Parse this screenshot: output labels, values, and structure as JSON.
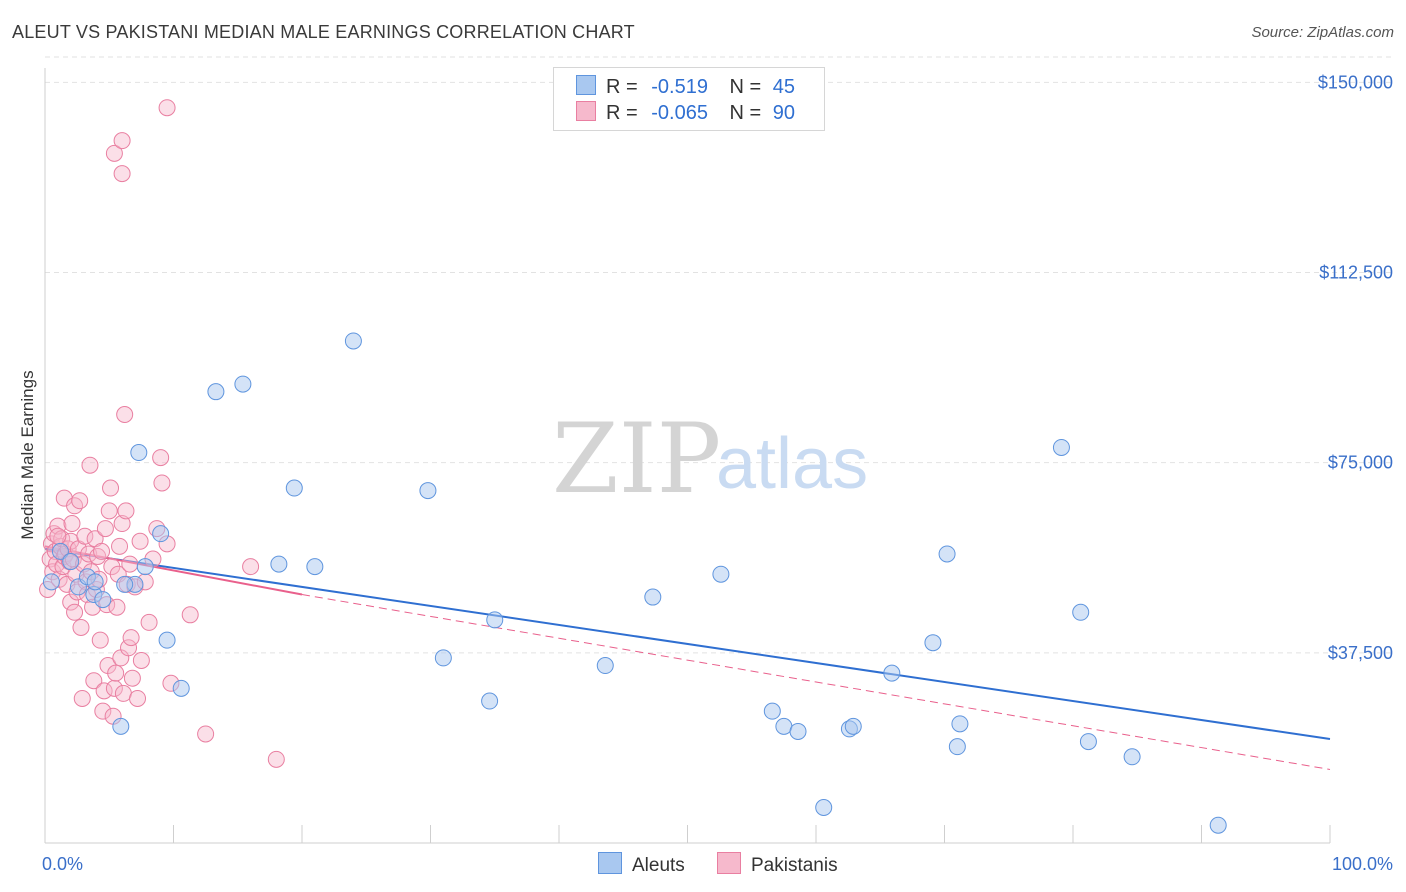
{
  "header": {
    "title": "ALEUT VS PAKISTANI MEDIAN MALE EARNINGS CORRELATION CHART",
    "source": "Source: ZipAtlas.com"
  },
  "watermark": {
    "zip": "ZIP",
    "atlas": "atlas"
  },
  "legend": {
    "rows": [
      {
        "r_label": "R =",
        "r_value": "-0.519",
        "n_label": "N =",
        "n_value": "45"
      },
      {
        "r_label": "R =",
        "r_value": "-0.065",
        "n_label": "N =",
        "n_value": "90"
      }
    ],
    "bottom": [
      {
        "label": "Aleuts"
      },
      {
        "label": "Pakistanis"
      }
    ]
  },
  "colors": {
    "aleuts_fill": "#a9c8f0",
    "aleuts_stroke": "#5f95de",
    "aleuts_line": "#2f6fd1",
    "pakistanis_fill": "#f6b9cc",
    "pakistanis_stroke": "#e97fa1",
    "pakistanis_line": "#e9608c",
    "grid": "#e2e2e2",
    "axis_text": "#3a6fc9"
  },
  "chart_data": {
    "type": "scatter",
    "title": "ALEUT VS PAKISTANI MEDIAN MALE EARNINGS CORRELATION CHART",
    "xlabel": "",
    "ylabel": "Median Male Earnings",
    "xlim": [
      0,
      100
    ],
    "ylim": [
      0,
      155000
    ],
    "x_tick_labels": [
      "0.0%",
      "100.0%"
    ],
    "y_ticks": [
      37500,
      75000,
      112500,
      150000
    ],
    "y_tick_labels": [
      "$37,500",
      "$75,000",
      "$112,500",
      "$150,000"
    ],
    "grid": true,
    "legend_position": "top-center",
    "series": [
      {
        "name": "Aleuts",
        "R": -0.519,
        "N": 45,
        "trend": {
          "x": [
            0,
            100
          ],
          "y": [
            58000,
            20500
          ],
          "style": "solid"
        },
        "points": [
          {
            "x": 0.5,
            "y": 51500
          },
          {
            "x": 1.2,
            "y": 57500
          },
          {
            "x": 2.0,
            "y": 55500
          },
          {
            "x": 2.6,
            "y": 50500
          },
          {
            "x": 3.3,
            "y": 52500
          },
          {
            "x": 3.8,
            "y": 49000
          },
          {
            "x": 3.9,
            "y": 51500
          },
          {
            "x": 4.5,
            "y": 48000
          },
          {
            "x": 7.0,
            "y": 51000
          },
          {
            "x": 5.9,
            "y": 23000
          },
          {
            "x": 6.2,
            "y": 51000
          },
          {
            "x": 7.3,
            "y": 77000
          },
          {
            "x": 7.8,
            "y": 54500
          },
          {
            "x": 9.0,
            "y": 61000
          },
          {
            "x": 9.5,
            "y": 40000
          },
          {
            "x": 10.6,
            "y": 30500
          },
          {
            "x": 13.3,
            "y": 89000
          },
          {
            "x": 15.4,
            "y": 90500
          },
          {
            "x": 18.2,
            "y": 55000
          },
          {
            "x": 19.4,
            "y": 70000
          },
          {
            "x": 21.0,
            "y": 54500
          },
          {
            "x": 24.0,
            "y": 99000
          },
          {
            "x": 29.8,
            "y": 69500
          },
          {
            "x": 31.0,
            "y": 36500
          },
          {
            "x": 34.6,
            "y": 28000
          },
          {
            "x": 35.0,
            "y": 44000
          },
          {
            "x": 43.6,
            "y": 35000
          },
          {
            "x": 47.3,
            "y": 48500
          },
          {
            "x": 52.6,
            "y": 53000
          },
          {
            "x": 56.6,
            "y": 26000
          },
          {
            "x": 57.5,
            "y": 23000
          },
          {
            "x": 58.6,
            "y": 22000
          },
          {
            "x": 60.6,
            "y": 7000
          },
          {
            "x": 62.6,
            "y": 22500
          },
          {
            "x": 62.9,
            "y": 23000
          },
          {
            "x": 65.9,
            "y": 33500
          },
          {
            "x": 70.2,
            "y": 57000
          },
          {
            "x": 69.1,
            "y": 39500
          },
          {
            "x": 71.0,
            "y": 19000
          },
          {
            "x": 71.2,
            "y": 23500
          },
          {
            "x": 79.1,
            "y": 78000
          },
          {
            "x": 80.6,
            "y": 45500
          },
          {
            "x": 81.2,
            "y": 20000
          },
          {
            "x": 84.6,
            "y": 17000
          },
          {
            "x": 91.3,
            "y": 3500
          }
        ]
      },
      {
        "name": "Pakistanis",
        "R": -0.065,
        "N": 90,
        "trend": {
          "x": [
            0,
            20
          ],
          "y": [
            58500,
            49000
          ],
          "style": "solid",
          "dashed_extension": {
            "x": [
              20,
              100
            ],
            "y": [
              49000,
              14500
            ]
          }
        },
        "points": [
          {
            "x": 0.2,
            "y": 50000
          },
          {
            "x": 0.4,
            "y": 56000
          },
          {
            "x": 0.5,
            "y": 59000
          },
          {
            "x": 0.6,
            "y": 53500
          },
          {
            "x": 0.7,
            "y": 61000
          },
          {
            "x": 0.8,
            "y": 57500
          },
          {
            "x": 0.9,
            "y": 55000
          },
          {
            "x": 1.0,
            "y": 62500
          },
          {
            "x": 1.1,
            "y": 52000
          },
          {
            "x": 1.2,
            "y": 58500
          },
          {
            "x": 1.3,
            "y": 60000
          },
          {
            "x": 1.4,
            "y": 54500
          },
          {
            "x": 1.5,
            "y": 56500
          },
          {
            "x": 1.5,
            "y": 68000
          },
          {
            "x": 1.6,
            "y": 57000
          },
          {
            "x": 1.7,
            "y": 51000
          },
          {
            "x": 1.8,
            "y": 58000
          },
          {
            "x": 1.9,
            "y": 55500
          },
          {
            "x": 2.0,
            "y": 59500
          },
          {
            "x": 2.0,
            "y": 47500
          },
          {
            "x": 2.1,
            "y": 63000
          },
          {
            "x": 2.2,
            "y": 56000
          },
          {
            "x": 2.3,
            "y": 45500
          },
          {
            "x": 2.3,
            "y": 66500
          },
          {
            "x": 2.4,
            "y": 53000
          },
          {
            "x": 2.5,
            "y": 49500
          },
          {
            "x": 2.6,
            "y": 58000
          },
          {
            "x": 2.7,
            "y": 67500
          },
          {
            "x": 2.8,
            "y": 42500
          },
          {
            "x": 2.9,
            "y": 28500
          },
          {
            "x": 3.0,
            "y": 55000
          },
          {
            "x": 3.1,
            "y": 60500
          },
          {
            "x": 3.2,
            "y": 51500
          },
          {
            "x": 3.3,
            "y": 49000
          },
          {
            "x": 3.4,
            "y": 57000
          },
          {
            "x": 3.5,
            "y": 74500
          },
          {
            "x": 3.6,
            "y": 53500
          },
          {
            "x": 3.7,
            "y": 46500
          },
          {
            "x": 3.8,
            "y": 32000
          },
          {
            "x": 3.9,
            "y": 60000
          },
          {
            "x": 4.0,
            "y": 50000
          },
          {
            "x": 4.1,
            "y": 56500
          },
          {
            "x": 4.2,
            "y": 52000
          },
          {
            "x": 4.3,
            "y": 40000
          },
          {
            "x": 4.4,
            "y": 57500
          },
          {
            "x": 4.5,
            "y": 26000
          },
          {
            "x": 4.6,
            "y": 30000
          },
          {
            "x": 4.7,
            "y": 62000
          },
          {
            "x": 4.8,
            "y": 47000
          },
          {
            "x": 4.9,
            "y": 35000
          },
          {
            "x": 5.0,
            "y": 65500
          },
          {
            "x": 5.1,
            "y": 70000
          },
          {
            "x": 5.2,
            "y": 54500
          },
          {
            "x": 5.3,
            "y": 25000
          },
          {
            "x": 5.4,
            "y": 30500
          },
          {
            "x": 5.5,
            "y": 33500
          },
          {
            "x": 5.6,
            "y": 46500
          },
          {
            "x": 5.7,
            "y": 53000
          },
          {
            "x": 5.8,
            "y": 58500
          },
          {
            "x": 5.9,
            "y": 36500
          },
          {
            "x": 6.0,
            "y": 63000
          },
          {
            "x": 6.1,
            "y": 29500
          },
          {
            "x": 6.2,
            "y": 84500
          },
          {
            "x": 6.3,
            "y": 65500
          },
          {
            "x": 6.4,
            "y": 51000
          },
          {
            "x": 6.5,
            "y": 38500
          },
          {
            "x": 6.6,
            "y": 55000
          },
          {
            "x": 6.7,
            "y": 40500
          },
          {
            "x": 6.8,
            "y": 32500
          },
          {
            "x": 7.0,
            "y": 50500
          },
          {
            "x": 7.2,
            "y": 28500
          },
          {
            "x": 7.4,
            "y": 59500
          },
          {
            "x": 7.5,
            "y": 36000
          },
          {
            "x": 7.8,
            "y": 51500
          },
          {
            "x": 8.1,
            "y": 43500
          },
          {
            "x": 8.4,
            "y": 56000
          },
          {
            "x": 8.7,
            "y": 62000
          },
          {
            "x": 9.0,
            "y": 76000
          },
          {
            "x": 9.1,
            "y": 71000
          },
          {
            "x": 9.5,
            "y": 59000
          },
          {
            "x": 9.8,
            "y": 31500
          },
          {
            "x": 11.3,
            "y": 45000
          },
          {
            "x": 12.5,
            "y": 21500
          },
          {
            "x": 16.0,
            "y": 54500
          },
          {
            "x": 18.0,
            "y": 16500
          },
          {
            "x": 5.4,
            "y": 136000
          },
          {
            "x": 6.0,
            "y": 138500
          },
          {
            "x": 6.0,
            "y": 132000
          },
          {
            "x": 9.5,
            "y": 145000
          },
          {
            "x": 1.0,
            "y": 60500
          }
        ]
      }
    ]
  }
}
